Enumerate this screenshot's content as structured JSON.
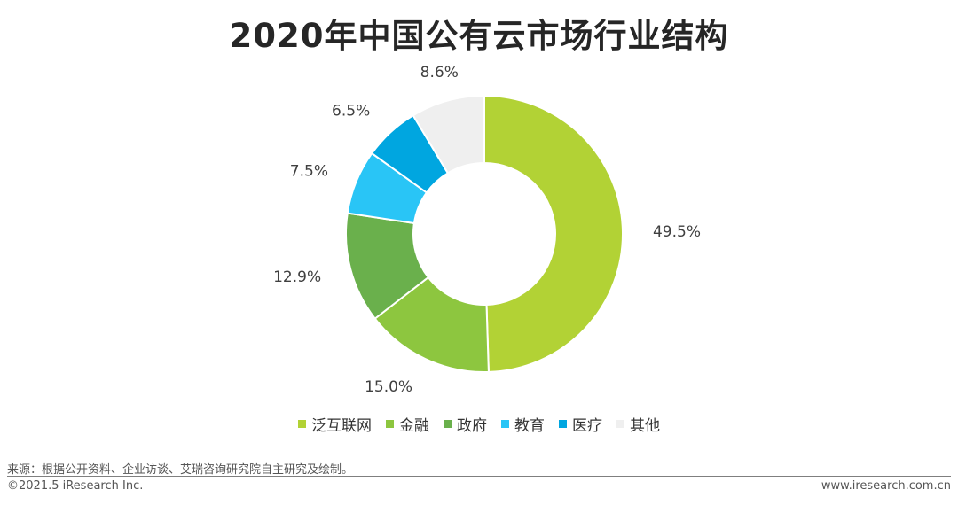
{
  "title": "2020年中国公有云市场行业结构",
  "chart_data": {
    "type": "pie",
    "donut": true,
    "categories": [
      "泛互联网",
      "金融",
      "政府",
      "教育",
      "医疗",
      "其他"
    ],
    "values": [
      49.5,
      15.0,
      12.9,
      7.5,
      6.5,
      8.6
    ],
    "labels": [
      "49.5%",
      "15.0%",
      "12.9%",
      "7.5%",
      "6.5%",
      "8.6%"
    ],
    "colors": [
      "#b2d235",
      "#8dc63f",
      "#6ab04c",
      "#29c5f6",
      "#00a6e0",
      "#efefef"
    ],
    "legend_position": "bottom"
  },
  "legend": [
    {
      "label": "泛互联网",
      "color": "#b2d235"
    },
    {
      "label": "金融",
      "color": "#8dc63f"
    },
    {
      "label": "政府",
      "color": "#6ab04c"
    },
    {
      "label": "教育",
      "color": "#29c5f6"
    },
    {
      "label": "医疗",
      "color": "#00a6e0"
    },
    {
      "label": "其他",
      "color": "#efefef"
    }
  ],
  "footer": {
    "source": "来源：根据公开资料、企业访谈、艾瑞咨询研究院自主研究及绘制。",
    "copyright": "©2021.5 iResearch Inc.",
    "site": "www.iresearch.com.cn"
  }
}
